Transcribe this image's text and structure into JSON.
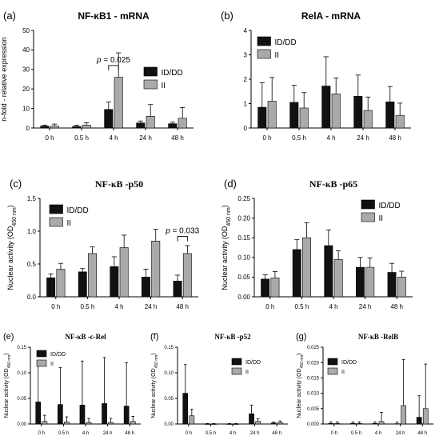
{
  "legend_labels": [
    "ID/DD",
    "II"
  ],
  "colors": {
    "id_dd": "#111111",
    "ii": "#aaaaaa",
    "axis": "#000000"
  },
  "chart_data": [
    {
      "panel": "(a)",
      "title": "NF-κB1 - mRNA",
      "type": "bar",
      "ylabel": "n-fold - relative expression",
      "ylim": [
        0,
        50
      ],
      "yticks": [
        0,
        10,
        20,
        30,
        40,
        50
      ],
      "categories": [
        "0 h",
        "0.5 h",
        "4 h",
        "24 h",
        "48 h"
      ],
      "series": [
        {
          "name": "ID/DD",
          "values": [
            1,
            0.8,
            9.5,
            2.6,
            2.2
          ],
          "err": [
            0.5,
            0.6,
            3.8,
            1.0,
            0.8
          ]
        },
        {
          "name": "II",
          "values": [
            1,
            1.5,
            26,
            6,
            5
          ],
          "err": [
            1.0,
            1.2,
            12.5,
            6,
            5.5
          ]
        }
      ],
      "annotation": {
        "text": "p = 0.025",
        "category": "4 h",
        "y": 32
      },
      "legend": "right"
    },
    {
      "panel": "(b)",
      "title": "RelA - mRNA",
      "type": "bar",
      "ylabel": "",
      "ylim": [
        0,
        4
      ],
      "yticks": [
        0,
        1,
        2,
        3,
        4
      ],
      "categories": [
        "0 h",
        "0.5 h",
        "4 h",
        "24 h",
        "48 h"
      ],
      "series": [
        {
          "name": "ID/DD",
          "values": [
            0.85,
            1.05,
            1.72,
            1.3,
            1.07
          ],
          "err": [
            1.0,
            0.7,
            1.2,
            0.87,
            0.63
          ]
        },
        {
          "name": "II",
          "values": [
            1.1,
            0.82,
            1.4,
            0.72,
            0.52
          ],
          "err": [
            0.97,
            0.63,
            0.65,
            0.55,
            0.5
          ]
        }
      ],
      "legend": "top-left"
    },
    {
      "panel": "(c)",
      "title": "NF-κB -p50",
      "type": "bar",
      "ylabel": "Nuclear activity (OD450 nm)",
      "ylim": [
        0,
        1.5
      ],
      "yticks": [
        0.0,
        0.5,
        1.0,
        1.5
      ],
      "categories": [
        "0 h",
        "0.5 h",
        "4 h",
        "24 h",
        "48 h"
      ],
      "series": [
        {
          "name": "ID/DD",
          "values": [
            0.29,
            0.38,
            0.46,
            0.3,
            0.24
          ],
          "err": [
            0.06,
            0.05,
            0.15,
            0.12,
            0.09
          ]
        },
        {
          "name": "II",
          "values": [
            0.42,
            0.66,
            0.75,
            0.85,
            0.66
          ],
          "err": [
            0.09,
            0.1,
            0.19,
            0.18,
            0.12
          ]
        }
      ],
      "annotation": {
        "text": "p = 0.033",
        "category": "48 h",
        "y": 0.92
      },
      "legend": "top-left"
    },
    {
      "panel": "(d)",
      "title": "NF-κB -p65",
      "type": "bar",
      "ylabel": "Nuclear activity (OD450 nm)",
      "ylim": [
        0,
        0.25
      ],
      "yticks": [
        0.0,
        0.05,
        0.1,
        0.15,
        0.2,
        0.25
      ],
      "categories": [
        "0 h",
        "0.5 h",
        "4 h",
        "24 h",
        "48 h"
      ],
      "series": [
        {
          "name": "ID/DD",
          "values": [
            0.045,
            0.12,
            0.13,
            0.075,
            0.062
          ],
          "err": [
            0.011,
            0.025,
            0.04,
            0.025,
            0.023
          ]
        },
        {
          "name": "II",
          "values": [
            0.048,
            0.15,
            0.095,
            0.075,
            0.05
          ],
          "err": [
            0.016,
            0.038,
            0.022,
            0.024,
            0.015
          ]
        }
      ],
      "legend": "top-right"
    },
    {
      "panel": "(e)",
      "title": "NF-κB -c-Rel",
      "type": "bar",
      "ylabel": "Nuclear activity (OD450 nm)",
      "ylim": [
        0,
        0.15
      ],
      "yticks": [
        0.0,
        0.05,
        0.1,
        0.15
      ],
      "categories": [
        "0 h",
        "0.5 h",
        "4 h",
        "24 h",
        "48 h"
      ],
      "series": [
        {
          "name": "ID/DD",
          "values": [
            0.043,
            0.038,
            0.037,
            0.04,
            0.035
          ],
          "err": [
            0.075,
            0.072,
            0.086,
            0.09,
            0.085
          ]
        },
        {
          "name": "II",
          "values": [
            0.005,
            0.004,
            0.003,
            0.003,
            0.005
          ],
          "err": [
            0.012,
            0.01,
            0.008,
            0.008,
            0.01
          ]
        }
      ],
      "legend": "top-left"
    },
    {
      "panel": "(f)",
      "title": "NF-κB -p52",
      "type": "bar",
      "ylabel": "Nuclear activity (OD450 nm)",
      "ylim": [
        0,
        0.15
      ],
      "yticks": [
        0.0,
        0.05,
        0.1,
        0.15
      ],
      "categories": [
        "0 h",
        "0.5 h",
        "4 h",
        "24 h",
        "48 h"
      ],
      "series": [
        {
          "name": "ID/DD",
          "values": [
            0.06,
            0.0,
            0.0,
            0.02,
            0.002
          ],
          "err": [
            0.056,
            0.001,
            0.001,
            0.017,
            0.002
          ]
        },
        {
          "name": "II",
          "values": [
            0.016,
            0.0,
            0.0,
            0.005,
            0.003
          ],
          "err": [
            0.013,
            0.001,
            0.001,
            0.005,
            0.003
          ]
        }
      ],
      "legend": "top-right"
    },
    {
      "panel": "(g)",
      "title": "NF-κB -RelB",
      "type": "bar",
      "ylabel": "Nuclear activity (OD450 nm)",
      "ylim": [
        0,
        0.025
      ],
      "yticks": [
        0.0,
        0.005,
        0.01,
        0.015,
        0.02,
        0.025
      ],
      "categories": [
        "0 h",
        "0.5 h",
        "4 h",
        "24 h",
        "48 h"
      ],
      "series": [
        {
          "name": "ID/DD",
          "values": [
            0.0002,
            0.0002,
            0.0002,
            0.0001,
            0.0022
          ],
          "err": [
            0.0005,
            0.0005,
            0.0005,
            0.0005,
            0.007
          ]
        },
        {
          "name": "II",
          "values": [
            0.0002,
            0.0002,
            0.0008,
            0.006,
            0.005
          ],
          "err": [
            0.0005,
            0.0005,
            0.003,
            0.015,
            0.0145
          ]
        }
      ],
      "legend": "top-left"
    }
  ]
}
